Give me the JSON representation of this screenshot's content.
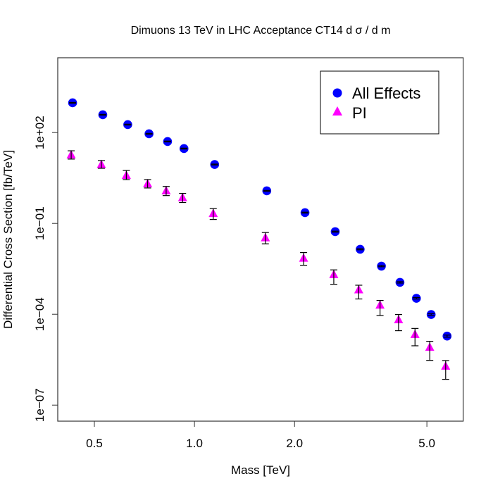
{
  "chart_data": {
    "type": "scatter",
    "title": "Dimuons 13 TeV in LHC Acceptance CT14  d σ / d m",
    "xlabel": "Mass [TeV]",
    "ylabel": "Differential Cross Section [fb/TeV]",
    "xscale": "log",
    "yscale": "log",
    "xlim": [
      0.388,
      6.43
    ],
    "ylim_log10": [
      -7.53,
      4.47
    ],
    "xticks": [
      0.5,
      1.0,
      2.0,
      5.0
    ],
    "xtick_labels": [
      "0.5",
      "1.0",
      "2.0",
      "5.0"
    ],
    "yticks": [
      100,
      0.1,
      0.0001,
      1e-07
    ],
    "ytick_labels": [
      "1e+02",
      "1e−01",
      "1e−04",
      "1e−07"
    ],
    "grid": false,
    "legend_position": "top-right",
    "x": [
      0.43,
      0.53,
      0.63,
      0.73,
      0.83,
      0.93,
      1.15,
      1.65,
      2.15,
      2.65,
      3.15,
      3.65,
      4.15,
      4.65,
      5.15,
      5.75
    ],
    "series": [
      {
        "name": "All Effects",
        "marker": "circle",
        "color": "#0000ff",
        "values": [
          960,
          387,
          183,
          91,
          50.7,
          29.6,
          8.8,
          1.19,
          0.227,
          0.0535,
          0.014,
          0.00388,
          0.00113,
          0.000336,
          9.8e-05,
          1.9e-05
        ],
        "err_low": [
          930,
          375,
          177,
          88,
          49,
          28.6,
          8.5,
          1.15,
          0.219,
          0.0515,
          0.0134,
          0.0037,
          0.00107,
          0.000318,
          9.2e-05,
          1.75e-05
        ],
        "err_high": [
          990,
          399,
          189,
          94,
          52.4,
          30.6,
          9.1,
          1.23,
          0.235,
          0.0555,
          0.0146,
          0.00406,
          0.00119,
          0.000354,
          0.000104,
          2.05e-05
        ]
      },
      {
        "name": "PI",
        "marker": "triangle",
        "color": "#ff00ff",
        "values": [
          18.3,
          8.8,
          3.87,
          2.04,
          1.19,
          0.71,
          0.212,
          0.0336,
          0.0071,
          0.00204,
          0.00064,
          0.0002,
          6.6e-05,
          2.15e-05,
          8.1e-06,
          1.93e-06
        ],
        "err_low": [
          13.3,
          6.6,
          2.8,
          1.48,
          0.83,
          0.49,
          0.135,
          0.0212,
          0.00416,
          0.00098,
          0.00032,
          9.1e-05,
          2.86e-05,
          9.1e-06,
          3e-06,
          7.1e-07
        ],
        "err_high": [
          25,
          11.9,
          5.6,
          2.8,
          1.66,
          0.98,
          0.308,
          0.05,
          0.0109,
          0.00292,
          0.00091,
          0.000286,
          9.8e-05,
          3.4e-05,
          1.28e-05,
          2.96e-06
        ]
      }
    ]
  }
}
